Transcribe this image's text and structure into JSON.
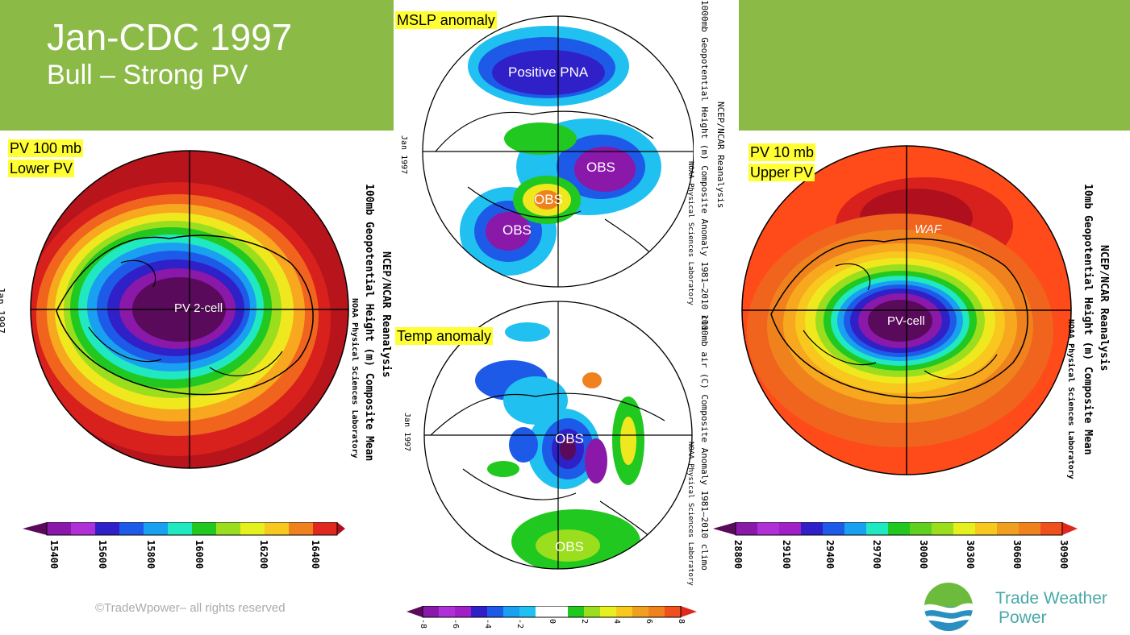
{
  "header": {
    "title": "Jan-CDC 1997",
    "subtitle": "Bull – Strong PV"
  },
  "panels": {
    "left": {
      "label_line1": "PV 100 mb",
      "label_line2": "Lower PV",
      "center_label": "PV 2-cell",
      "side_text_1": "NCEP/NCAR Reanalysis",
      "side_text_2": "100mb Geopotential Height (m) Composite Mean",
      "side_text_3": "NOAA Physical Sciences Laboratory",
      "date_text": "Jan 1997",
      "colorbar_ticks": [
        "15400",
        "15600",
        "15800",
        "16000",
        "16200",
        "16400"
      ]
    },
    "top_middle": {
      "label": "MSLP anomaly",
      "labels": [
        "Positive PNA",
        "OBS",
        "OBS",
        "OBS"
      ],
      "side_text_1": "NCEP/NCAR Reanalysis",
      "side_text_2": "1000mb Geopotential Height (m) Composite Anomaly 1981–2010 cli",
      "side_text_3": "NOAA Physical Sciences Laboratory",
      "date_text": "Jan 1997"
    },
    "bottom_middle": {
      "label": "Temp anomaly",
      "labels": [
        "OBS",
        "OBS"
      ],
      "side_text_1": "1000mb air (C) Composite Anomaly 1981–2010 climo",
      "side_text_2": "NOAA Physical Sciences Laboratory",
      "date_text": "Jan 1997",
      "colorbar_ticks": [
        "-8",
        "-6",
        "-4",
        "-2",
        "0",
        "2",
        "4",
        "6",
        "8"
      ]
    },
    "right": {
      "label_line1": "PV 10 mb",
      "label_line2": "Upper PV",
      "center_label": "PV-cell",
      "waf_label": "WAF",
      "side_text_1": "NCEP/NCAR Reanalysis",
      "side_text_2": "10mb Geopotential Height (m) Composite Mean",
      "side_text_3": "NOAA Physical Sciences Laboratory",
      "colorbar_ticks": [
        "28800",
        "29100",
        "29400",
        "29700",
        "30000",
        "30300",
        "30600",
        "30900"
      ]
    }
  },
  "footer": {
    "copyright": "©TradeWpower– all rights reserved",
    "brand_line1": "Trade Weather",
    "brand_line2": "Power",
    "logo_icon": "wave-globe-logo-icon"
  },
  "colors": {
    "banner_green": "#8cba47",
    "highlight_yellow": "#ffff33",
    "brand_teal": "#4aa8a8",
    "scale": [
      "#5a0a5a",
      "#8a18a8",
      "#b030d8",
      "#3020c8",
      "#1e5ae8",
      "#1aa0f0",
      "#20e8c0",
      "#20c820",
      "#9ade1e",
      "#e6f01e",
      "#f8c81e",
      "#f0821e",
      "#e0281e",
      "#b0101e"
    ]
  }
}
